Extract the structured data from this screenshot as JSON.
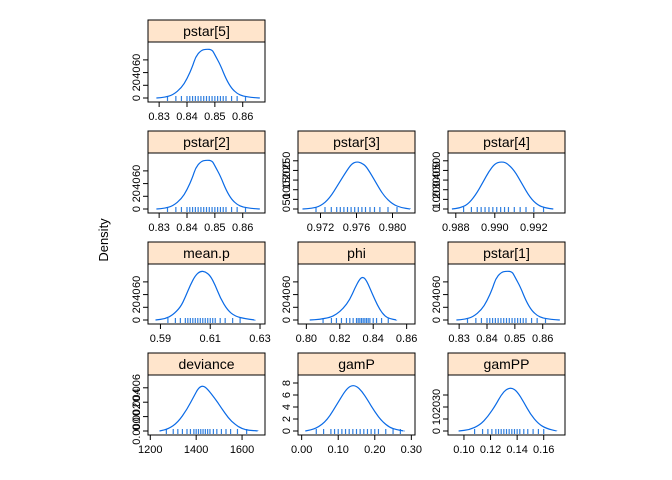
{
  "figure": {
    "ylabel": "Density",
    "strip_color": "#FFE5CC",
    "line_color": "#0A6AE6",
    "rug_color": "#2F7FE0"
  },
  "chart_data": [
    {
      "type": "line",
      "title": "pstar[5]",
      "xlim": [
        0.826,
        0.868
      ],
      "ylim": [
        0,
        85
      ],
      "xticks": [
        0.83,
        0.84,
        0.85,
        0.86
      ],
      "xtick_labels": [
        "0.83",
        "0.84",
        "0.85",
        "0.86"
      ],
      "yticks": [
        0,
        20,
        40,
        60
      ],
      "ytick_labels": [
        "0",
        "20",
        "40",
        "60"
      ],
      "x": [
        0.829,
        0.832,
        0.835,
        0.838,
        0.84,
        0.842,
        0.843,
        0.845,
        0.847,
        0.849,
        0.85,
        0.852,
        0.854,
        0.856,
        0.858,
        0.86,
        0.863,
        0.866
      ],
      "y": [
        0,
        1,
        5,
        16,
        30,
        50,
        64,
        75,
        77,
        76,
        68,
        52,
        30,
        15,
        7,
        3,
        1,
        0
      ],
      "rug": [
        0.833,
        0.836,
        0.838,
        0.84,
        0.841,
        0.842,
        0.843,
        0.844,
        0.845,
        0.846,
        0.847,
        0.848,
        0.849,
        0.85,
        0.851,
        0.852,
        0.853,
        0.854,
        0.856,
        0.858,
        0.861
      ]
    },
    {
      "type": "line",
      "title": "pstar[2]",
      "xlim": [
        0.826,
        0.868
      ],
      "ylim": [
        0,
        85
      ],
      "xticks": [
        0.83,
        0.84,
        0.85,
        0.86
      ],
      "xtick_labels": [
        "0.83",
        "0.84",
        "0.85",
        "0.86"
      ],
      "yticks": [
        0,
        20,
        40,
        60
      ],
      "ytick_labels": [
        "0",
        "20",
        "40",
        "60"
      ],
      "x": [
        0.829,
        0.832,
        0.835,
        0.838,
        0.84,
        0.842,
        0.843,
        0.845,
        0.847,
        0.849,
        0.85,
        0.852,
        0.854,
        0.856,
        0.858,
        0.86,
        0.863,
        0.866
      ],
      "y": [
        0,
        1,
        5,
        16,
        30,
        50,
        64,
        75,
        77,
        76,
        68,
        52,
        30,
        15,
        7,
        3,
        1,
        0
      ],
      "rug": [
        0.833,
        0.836,
        0.838,
        0.84,
        0.841,
        0.842,
        0.843,
        0.844,
        0.845,
        0.846,
        0.847,
        0.848,
        0.849,
        0.85,
        0.851,
        0.852,
        0.853,
        0.854,
        0.856,
        0.858,
        0.861
      ]
    },
    {
      "type": "line",
      "title": "pstar[3]",
      "xlim": [
        0.9695,
        0.9825
      ],
      "ylim": [
        0,
        280
      ],
      "xticks": [
        0.972,
        0.976,
        0.98
      ],
      "xtick_labels": [
        "0.972",
        "0.976",
        "0.980"
      ],
      "yticks": [
        0,
        50,
        100,
        150,
        200,
        250
      ],
      "ytick_labels": [
        "0",
        "50",
        "100",
        "150",
        "200",
        "250"
      ],
      "x": [
        0.97,
        0.971,
        0.972,
        0.973,
        0.974,
        0.975,
        0.9755,
        0.976,
        0.9765,
        0.977,
        0.9775,
        0.978,
        0.979,
        0.98,
        0.981,
        0.982
      ],
      "y": [
        0,
        3,
        15,
        55,
        130,
        205,
        235,
        245,
        240,
        225,
        190,
        150,
        70,
        25,
        6,
        0
      ],
      "rug": [
        0.9715,
        0.9725,
        0.9732,
        0.9738,
        0.9742,
        0.9746,
        0.975,
        0.9754,
        0.9758,
        0.9762,
        0.9766,
        0.977,
        0.9775,
        0.978,
        0.9786,
        0.9795,
        0.9805
      ]
    },
    {
      "type": "line",
      "title": "pstar[4]",
      "xlim": [
        0.9876,
        0.9936
      ],
      "ylim": [
        0,
        560
      ],
      "xticks": [
        0.988,
        0.99,
        0.992
      ],
      "xtick_labels": [
        "0.988",
        "0.990",
        "0.992"
      ],
      "yticks": [
        0,
        100,
        200,
        300,
        400,
        500
      ],
      "ytick_labels": [
        "0",
        "100",
        "200",
        "300",
        "400",
        "500"
      ],
      "x": [
        0.9878,
        0.9882,
        0.9886,
        0.989,
        0.9894,
        0.9897,
        0.99,
        0.9903,
        0.9906,
        0.991,
        0.9914,
        0.9918,
        0.9922,
        0.9926,
        0.993
      ],
      "y": [
        0,
        10,
        45,
        140,
        280,
        390,
        470,
        490,
        480,
        400,
        260,
        120,
        40,
        10,
        0
      ],
      "rug": [
        0.9884,
        0.9888,
        0.9891,
        0.9893,
        0.9895,
        0.9897,
        0.9899,
        0.9901,
        0.9903,
        0.9905,
        0.9907,
        0.991,
        0.9913,
        0.9916,
        0.992,
        0.9925
      ]
    },
    {
      "type": "line",
      "title": "mean.p",
      "xlim": [
        0.585,
        0.632
      ],
      "ylim": [
        0,
        85
      ],
      "xticks": [
        0.59,
        0.61,
        0.63
      ],
      "xtick_labels": [
        "0.59",
        "0.61",
        "0.63"
      ],
      "yticks": [
        0,
        20,
        40,
        60
      ],
      "ytick_labels": [
        "0",
        "20",
        "40",
        "60"
      ],
      "x": [
        0.588,
        0.592,
        0.595,
        0.598,
        0.6,
        0.602,
        0.604,
        0.606,
        0.608,
        0.61,
        0.612,
        0.614,
        0.617,
        0.62,
        0.624,
        0.628
      ],
      "y": [
        0,
        2,
        8,
        20,
        36,
        55,
        70,
        77,
        76,
        70,
        55,
        35,
        15,
        6,
        2,
        0
      ],
      "rug": [
        0.593,
        0.596,
        0.598,
        0.6,
        0.601,
        0.602,
        0.603,
        0.604,
        0.605,
        0.606,
        0.607,
        0.608,
        0.609,
        0.61,
        0.611,
        0.612,
        0.614,
        0.616,
        0.619,
        0.622
      ]
    },
    {
      "type": "line",
      "title": "phi",
      "xlim": [
        0.795,
        0.865
      ],
      "ylim": [
        0,
        85
      ],
      "xticks": [
        0.8,
        0.82,
        0.84,
        0.86
      ],
      "xtick_labels": [
        "0.80",
        "0.82",
        "0.84",
        "0.86"
      ],
      "yticks": [
        0,
        20,
        40,
        60
      ],
      "ytick_labels": [
        "0",
        "20",
        "40",
        "60"
      ],
      "x": [
        0.802,
        0.808,
        0.814,
        0.818,
        0.822,
        0.826,
        0.829,
        0.832,
        0.834,
        0.836,
        0.838,
        0.841,
        0.844,
        0.847,
        0.85,
        0.854
      ],
      "y": [
        0,
        1,
        4,
        9,
        18,
        32,
        50,
        65,
        68,
        62,
        50,
        32,
        16,
        6,
        2,
        0
      ],
      "rug": [
        0.81,
        0.815,
        0.818,
        0.821,
        0.824,
        0.826,
        0.828,
        0.83,
        0.831,
        0.832,
        0.833,
        0.834,
        0.835,
        0.836,
        0.837,
        0.838,
        0.84,
        0.842,
        0.845,
        0.849
      ]
    },
    {
      "type": "line",
      "title": "pstar[1]",
      "xlim": [
        0.826,
        0.868
      ],
      "ylim": [
        0,
        85
      ],
      "xticks": [
        0.83,
        0.84,
        0.85,
        0.86
      ],
      "xtick_labels": [
        "0.83",
        "0.84",
        "0.85",
        "0.86"
      ],
      "yticks": [
        0,
        20,
        40,
        60
      ],
      "ytick_labels": [
        "0",
        "20",
        "40",
        "60"
      ],
      "x": [
        0.829,
        0.832,
        0.835,
        0.838,
        0.84,
        0.842,
        0.843,
        0.845,
        0.847,
        0.849,
        0.85,
        0.852,
        0.854,
        0.856,
        0.858,
        0.86,
        0.863,
        0.866
      ],
      "y": [
        0,
        1,
        5,
        16,
        30,
        50,
        64,
        75,
        77,
        76,
        68,
        52,
        30,
        15,
        7,
        3,
        1,
        0
      ],
      "rug": [
        0.833,
        0.836,
        0.838,
        0.84,
        0.841,
        0.842,
        0.843,
        0.844,
        0.845,
        0.846,
        0.847,
        0.848,
        0.849,
        0.85,
        0.851,
        0.852,
        0.853,
        0.854,
        0.856,
        0.858,
        0.861
      ]
    },
    {
      "type": "line",
      "title": "deviance",
      "xlim": [
        1190,
        1700
      ],
      "ylim": [
        0,
        0.0075
      ],
      "xticks": [
        1200,
        1400,
        1600
      ],
      "xtick_labels": [
        "1200",
        "1400",
        "1600"
      ],
      "yticks": [
        0,
        0.002,
        0.004,
        0.006
      ],
      "ytick_labels": [
        "0.000",
        "0.002",
        "0.004",
        "0.006"
      ],
      "x": [
        1240,
        1280,
        1320,
        1360,
        1390,
        1410,
        1430,
        1450,
        1480,
        1510,
        1540,
        1570,
        1600,
        1630,
        1670
      ],
      "y": [
        0,
        0.0003,
        0.0012,
        0.003,
        0.0048,
        0.006,
        0.0063,
        0.0058,
        0.0046,
        0.0032,
        0.0018,
        0.0009,
        0.0003,
        0.0001,
        0
      ],
      "rug": [
        1270,
        1300,
        1320,
        1340,
        1360,
        1375,
        1390,
        1400,
        1410,
        1420,
        1430,
        1440,
        1450,
        1460,
        1475,
        1490,
        1510,
        1530,
        1550,
        1580,
        1620
      ]
    },
    {
      "type": "line",
      "title": "gamP",
      "xlim": [
        -0.01,
        0.31
      ],
      "ylim": [
        0,
        9
      ],
      "xticks": [
        0.0,
        0.1,
        0.2,
        0.3
      ],
      "xtick_labels": [
        "0.00",
        "0.10",
        "0.20",
        "0.30"
      ],
      "yticks": [
        0,
        2,
        4,
        6,
        8
      ],
      "ytick_labels": [
        "0",
        "2",
        "4",
        "6",
        "8"
      ],
      "x": [
        0.01,
        0.04,
        0.07,
        0.1,
        0.12,
        0.135,
        0.15,
        0.165,
        0.18,
        0.2,
        0.22,
        0.24,
        0.26,
        0.28
      ],
      "y": [
        0,
        0.4,
        1.8,
        4.8,
        6.8,
        7.6,
        7.5,
        6.6,
        5.2,
        3.2,
        1.6,
        0.6,
        0.2,
        0
      ],
      "rug": [
        0.04,
        0.06,
        0.08,
        0.09,
        0.1,
        0.11,
        0.12,
        0.13,
        0.14,
        0.15,
        0.16,
        0.17,
        0.18,
        0.19,
        0.2,
        0.21,
        0.23,
        0.25,
        0.27
      ]
    },
    {
      "type": "line",
      "title": "gamPP",
      "xlim": [
        0.088,
        0.176
      ],
      "ylim": [
        0,
        45
      ],
      "xticks": [
        0.1,
        0.12,
        0.14,
        0.16
      ],
      "xtick_labels": [
        "0.10",
        "0.12",
        "0.14",
        "0.16"
      ],
      "yticks": [
        0,
        10,
        20,
        30
      ],
      "ytick_labels": [
        "0",
        "10",
        "20",
        "30"
      ],
      "x": [
        0.096,
        0.104,
        0.112,
        0.118,
        0.124,
        0.128,
        0.132,
        0.136,
        0.14,
        0.145,
        0.15,
        0.156,
        0.162,
        0.17
      ],
      "y": [
        0,
        1,
        5,
        12,
        22,
        30,
        35,
        36,
        33,
        24,
        14,
        6,
        2,
        0
      ],
      "rug": [
        0.108,
        0.114,
        0.118,
        0.121,
        0.124,
        0.126,
        0.128,
        0.13,
        0.132,
        0.134,
        0.136,
        0.138,
        0.14,
        0.142,
        0.145,
        0.148,
        0.152,
        0.156,
        0.16
      ]
    }
  ]
}
